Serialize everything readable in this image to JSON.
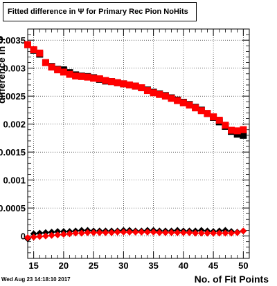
{
  "title": "Fitted difference in  Ψ  for Primary Rec Pion NoHits",
  "footer": "Wed Aug 23 14:18:10 2017",
  "colors": {
    "series1": "#000000",
    "series2": "#ff0000",
    "axis": "#000000",
    "grid": "#000000"
  },
  "chart_data": {
    "type": "scatter",
    "xlabel": "No. of Fit Points",
    "ylabel": "difference in Ψ",
    "xlim": [
      14,
      51
    ],
    "ylim": [
      -0.0004,
      0.0037
    ],
    "grid": true,
    "xticks": [
      15,
      20,
      25,
      30,
      35,
      40,
      45,
      50
    ],
    "yticks": [
      0,
      0.0005,
      0.001,
      0.0015,
      0.002,
      0.0025,
      0.003,
      0.0035
    ],
    "ytick_labels": [
      "0",
      "0.0005",
      "0.001",
      "0.0015",
      "0.002",
      "0.0025",
      "0.003",
      "0.0035"
    ],
    "x": [
      14,
      15,
      16,
      17,
      18,
      19,
      20,
      21,
      22,
      23,
      24,
      25,
      26,
      27,
      28,
      29,
      30,
      31,
      32,
      33,
      34,
      35,
      36,
      37,
      38,
      39,
      40,
      41,
      42,
      43,
      44,
      45,
      46,
      47,
      48,
      49,
      50
    ],
    "series": [
      {
        "values": [
          0.00342,
          0.00332,
          0.00325,
          0.0031,
          0.00303,
          0.00298,
          0.00297,
          0.00292,
          0.00288,
          0.00286,
          0.00285,
          0.00283,
          0.0028,
          0.00277,
          0.00276,
          0.00274,
          0.00272,
          0.0027,
          0.00268,
          0.00265,
          0.00261,
          0.00257,
          0.00254,
          0.00251,
          0.00247,
          0.00243,
          0.00239,
          0.00235,
          0.0023,
          0.00225,
          0.00219,
          0.00212,
          0.00204,
          0.00196,
          0.00187,
          0.00182,
          0.0018
        ],
        "sizes": [
          7e-05,
          0,
          0,
          0,
          0,
          0,
          0,
          0,
          0,
          0,
          0,
          0,
          0,
          0,
          0,
          0,
          0,
          0,
          0,
          0,
          0,
          0,
          0,
          0,
          0,
          0,
          0,
          0,
          0,
          0,
          0,
          0,
          0,
          0,
          0,
          0,
          0
        ],
        "marker": "square"
      },
      {
        "values": [
          0.00342,
          0.00333,
          0.00327,
          0.0031,
          0.00302,
          0.00297,
          0.00293,
          0.00289,
          0.00286,
          0.00285,
          0.00284,
          0.00282,
          0.00281,
          0.00278,
          0.00276,
          0.00274,
          0.00272,
          0.0027,
          0.00268,
          0.00265,
          0.0026,
          0.00256,
          0.00253,
          0.0025,
          0.00246,
          0.00242,
          0.00238,
          0.00234,
          0.00229,
          0.00224,
          0.00219,
          0.00213,
          0.00207,
          0.00198,
          0.00189,
          0.00188,
          0.0019
        ],
        "marker": "square"
      },
      {
        "values": [
          -5e-05,
          4e-05,
          5e-05,
          6e-05,
          7e-05,
          8e-05,
          8e-05,
          8e-05,
          9e-05,
          0.0001,
          0.0001,
          9e-05,
          9e-05,
          9e-05,
          9e-05,
          9e-05,
          0.0001,
          0.0001,
          9e-05,
          9e-05,
          0.0001,
          0.0001,
          9e-05,
          9e-05,
          9e-05,
          0.0001,
          9e-05,
          9e-05,
          9e-05,
          0.0001,
          9e-05,
          8e-05,
          9e-05,
          0.0001,
          8e-05,
          7e-05,
          9e-05
        ],
        "marker": "diamond"
      },
      {
        "values": [
          -3e-05,
          -2e-05,
          -1e-05,
          0.0,
          1e-05,
          2e-05,
          3e-05,
          4e-05,
          5e-05,
          5e-05,
          6e-05,
          6e-05,
          6e-05,
          6e-05,
          6e-05,
          7e-05,
          7e-05,
          7e-05,
          7e-05,
          7e-05,
          7e-05,
          7e-05,
          6e-05,
          6e-05,
          6e-05,
          6e-05,
          6e-05,
          6e-05,
          5e-05,
          5e-05,
          5e-05,
          5e-05,
          5e-05,
          5e-05,
          5e-05,
          6e-05,
          9e-05
        ],
        "marker": "diamond"
      }
    ]
  }
}
